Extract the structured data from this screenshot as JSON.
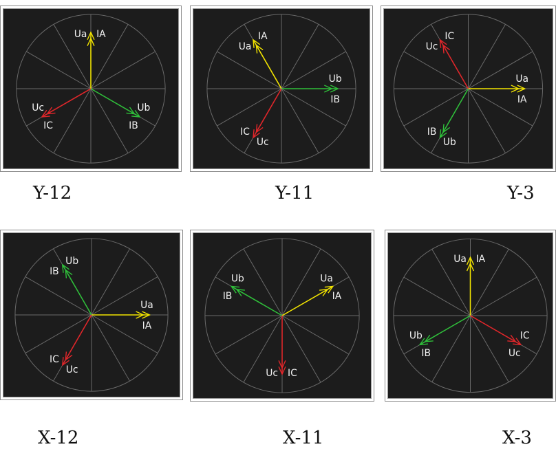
{
  "colors": {
    "phase_a": "#f2e400",
    "phase_b": "#2fbf3a",
    "phase_c": "#e0262a",
    "grid": "#6a6a6a",
    "panel_bg": "#1c1c1c",
    "label": "#f0f0f0"
  },
  "diagrams": [
    {
      "caption": "Y-12",
      "vectors": [
        {
          "phase": "A",
          "angle_deg": 90,
          "labels": [
            "IA",
            "Ua"
          ]
        },
        {
          "phase": "B",
          "angle_deg": -30,
          "labels": [
            "IB",
            "Ub"
          ]
        },
        {
          "phase": "C",
          "angle_deg": -150,
          "labels": [
            "Uc",
            "IC"
          ]
        }
      ]
    },
    {
      "caption": "Y-11",
      "vectors": [
        {
          "phase": "A",
          "angle_deg": 120,
          "labels": [
            "IA",
            "Ua"
          ]
        },
        {
          "phase": "B",
          "angle_deg": 0,
          "labels": [
            "IB",
            "Ub"
          ]
        },
        {
          "phase": "C",
          "angle_deg": -120,
          "labels": [
            "IC",
            "Uc"
          ]
        }
      ]
    },
    {
      "caption": "Y-3",
      "vectors": [
        {
          "phase": "A",
          "angle_deg": 0,
          "labels": [
            "IA",
            "Ua"
          ]
        },
        {
          "phase": "B",
          "angle_deg": -120,
          "labels": [
            "IB",
            "Ub"
          ]
        },
        {
          "phase": "C",
          "angle_deg": 120,
          "labels": [
            "IC",
            "Uc"
          ]
        }
      ]
    },
    {
      "caption": "X-12",
      "vectors": [
        {
          "phase": "A",
          "angle_deg": 0,
          "labels": [
            "IA",
            "Ua"
          ]
        },
        {
          "phase": "B",
          "angle_deg": 120,
          "labels": [
            "Ub",
            "IB"
          ]
        },
        {
          "phase": "C",
          "angle_deg": -120,
          "labels": [
            "IC",
            "Uc"
          ]
        }
      ]
    },
    {
      "caption": "X-11",
      "vectors": [
        {
          "phase": "A",
          "angle_deg": 30,
          "labels": [
            "IA",
            "Ua"
          ]
        },
        {
          "phase": "B",
          "angle_deg": 150,
          "labels": [
            "Ub",
            "IB"
          ]
        },
        {
          "phase": "C",
          "angle_deg": -90,
          "labels": [
            "Uc",
            "IC"
          ]
        }
      ]
    },
    {
      "caption": "X-3",
      "vectors": [
        {
          "phase": "A",
          "angle_deg": 90,
          "labels": [
            "IA",
            "Ua"
          ]
        },
        {
          "phase": "B",
          "angle_deg": -150,
          "labels": [
            "Ub",
            "IB"
          ]
        },
        {
          "phase": "C",
          "angle_deg": -30,
          "labels": [
            "Uc",
            "IC"
          ]
        }
      ]
    }
  ]
}
